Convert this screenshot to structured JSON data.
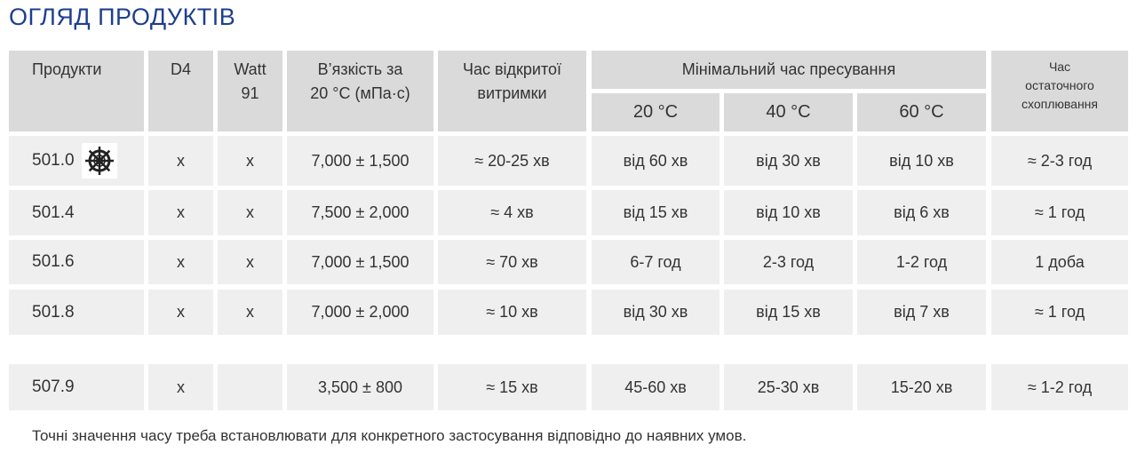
{
  "header": {
    "title": "ОГЛЯД ПРОДУКТІВ"
  },
  "table": {
    "columns": [
      [
        "Продукти"
      ],
      [
        "D4"
      ],
      [
        "Watt",
        "91"
      ],
      [
        "В’язкість за",
        "20 °C (мПа·с)"
      ],
      [
        "Час відкритої",
        "витримки"
      ],
      null,
      null,
      null,
      [
        "Час",
        "остаточного",
        "схоплювання"
      ]
    ],
    "group_header": "Мінімальний час пресування",
    "sub_headers": [
      "20 °C",
      "40 °C",
      "60 °C"
    ],
    "rows": [
      [
        "501.0",
        "x",
        "x",
        "7,000 ± 1,500",
        "≈ 20-25 хв",
        "від 60 хв",
        "від 30 хв",
        "від 10 хв",
        "≈ 2-3 год"
      ],
      [
        "501.4",
        "x",
        "x",
        "7,500 ± 2,000",
        "≈ 4 хв",
        "від 15 хв",
        "від 10 хв",
        "від 6 хв",
        "≈ 1 год"
      ],
      [
        "501.6",
        "x",
        "x",
        "7,000 ± 1,500",
        "≈ 70 хв",
        "6-7 год",
        "2-3 год",
        "1-2 год",
        "1 доба"
      ],
      [
        "501.8",
        "x",
        "x",
        "7,000 ± 2,000",
        "≈ 10 хв",
        "від 30 хв",
        "від 15 хв",
        "від 7 хв",
        "≈ 1 год"
      ],
      [
        "507.9",
        "x",
        null,
        "3,500 ± 800",
        "≈ 15 хв",
        "45-60 хв",
        "25-30 хв",
        "15-20 хв",
        "≈ 1-2 год"
      ]
    ]
  },
  "footnote": "Точні значення часу треба встановлювати для конкретного застосування відповідно до наявних умов."
}
